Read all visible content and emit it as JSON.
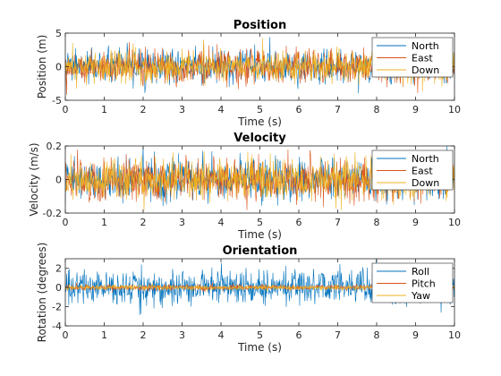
{
  "chart_data": [
    {
      "type": "line",
      "title": "Position",
      "xlabel": "Time (s)",
      "ylabel": "Position (m)",
      "xlim": [
        0,
        10
      ],
      "ylim": [
        -5,
        5
      ],
      "xticks": [
        "0",
        "1",
        "2",
        "3",
        "4",
        "5",
        "6",
        "7",
        "8",
        "9",
        "10"
      ],
      "yticks": [
        "-5",
        "0",
        "5"
      ],
      "legend_position": "top-right",
      "grid": false,
      "noise_amplitude": 1.2,
      "series": [
        {
          "name": "North",
          "color": "#0072BD"
        },
        {
          "name": "East",
          "color": "#D95319"
        },
        {
          "name": "Down",
          "color": "#EDB120"
        }
      ]
    },
    {
      "type": "line",
      "title": "Velocity",
      "xlabel": "Time (s)",
      "ylabel": "Velocity (m/s)",
      "xlim": [
        0,
        10
      ],
      "ylim": [
        -0.2,
        0.2
      ],
      "xticks": [
        "0",
        "1",
        "2",
        "3",
        "4",
        "5",
        "6",
        "7",
        "8",
        "9",
        "10"
      ],
      "yticks": [
        "-0.2",
        "0",
        "0.2"
      ],
      "legend_position": "top-right",
      "grid": false,
      "noise_amplitude": 0.06,
      "series": [
        {
          "name": "North",
          "color": "#0072BD"
        },
        {
          "name": "East",
          "color": "#D95319"
        },
        {
          "name": "Down",
          "color": "#EDB120"
        }
      ]
    },
    {
      "type": "line",
      "title": "Orientation",
      "xlabel": "Time (s)",
      "ylabel": "Rotation (degrees)",
      "xlim": [
        0,
        10
      ],
      "ylim": [
        -4,
        3
      ],
      "xticks": [
        "0",
        "1",
        "2",
        "3",
        "4",
        "5",
        "6",
        "7",
        "8",
        "9",
        "10"
      ],
      "yticks": [
        "-4",
        "-2",
        "0",
        "2"
      ],
      "legend_position": "top-right",
      "grid": false,
      "series": [
        {
          "name": "Roll",
          "color": "#0072BD",
          "noise_amplitude": 0.9
        },
        {
          "name": "Pitch",
          "color": "#D95319",
          "noise_amplitude": 0.15
        },
        {
          "name": "Yaw",
          "color": "#EDB120",
          "noise_amplitude": 0.12
        }
      ]
    }
  ]
}
